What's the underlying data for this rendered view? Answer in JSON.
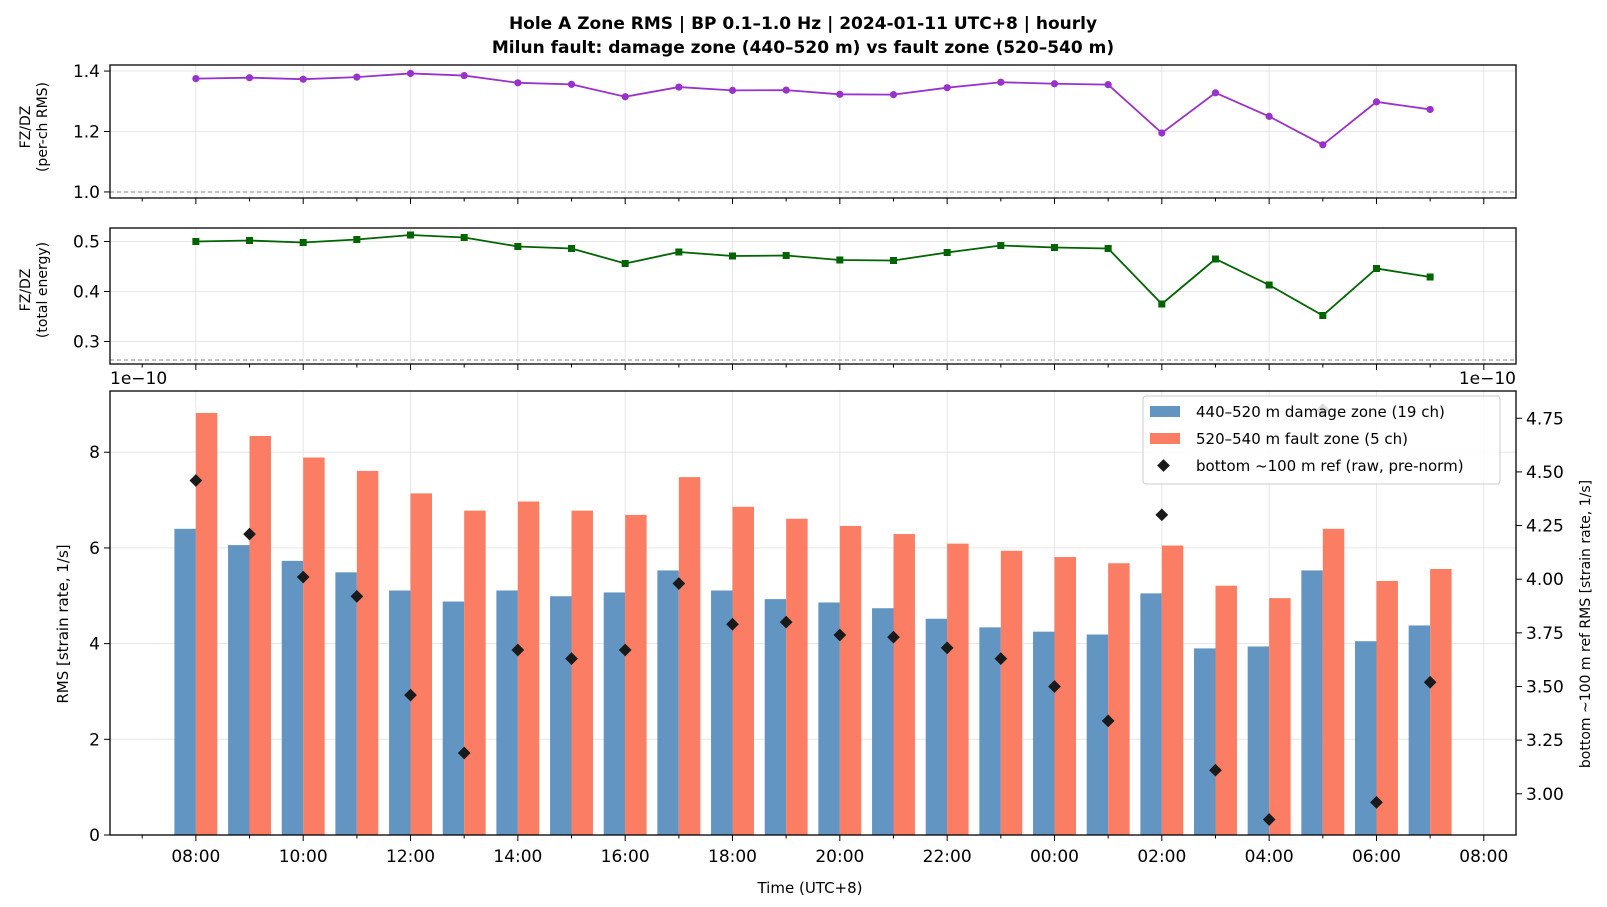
{
  "title": {
    "line1": "Hole A Zone RMS  |  BP 0.1–1.0 Hz  |  2024-01-11 UTC+8  |  hourly",
    "line2": "Milun fault: damage zone (440–520 m) vs fault zone (520–540 m)"
  },
  "colors": {
    "ratio_rms": "#9932cc",
    "ratio_energy": "#006400",
    "damage_zone": "#6395c3",
    "fault_zone": "#fa7d64",
    "reference": "#1a1a1a",
    "grid": "#e6e6e6"
  },
  "chart_data": [
    {
      "type": "line",
      "ylabel_line1": "FZ/DZ",
      "ylabel_line2": "(per-ch RMS)",
      "ylim": [
        0.98,
        1.42
      ],
      "yticks": [
        "1.0",
        "1.2",
        "1.4"
      ],
      "ytick_values": [
        1.0,
        1.2,
        1.4
      ],
      "reference_line": 1.0,
      "x_hours": [
        0,
        1,
        2,
        3,
        4,
        5,
        6,
        7,
        8,
        9,
        10,
        11,
        12,
        13,
        14,
        15,
        16,
        17,
        18,
        19,
        20,
        21,
        22,
        23
      ],
      "values": [
        1.375,
        1.378,
        1.373,
        1.38,
        1.392,
        1.385,
        1.361,
        1.356,
        1.315,
        1.347,
        1.336,
        1.337,
        1.323,
        1.322,
        1.345,
        1.363,
        1.358,
        1.355,
        1.195,
        1.328,
        1.25,
        1.156,
        1.298,
        1.273
      ]
    },
    {
      "type": "line",
      "ylabel_line1": "FZ/DZ",
      "ylabel_line2": "(total energy)",
      "ylim": [
        0.255,
        0.527
      ],
      "yticks": [
        "0.3",
        "0.4",
        "0.5"
      ],
      "ytick_values": [
        0.3,
        0.4,
        0.5
      ],
      "reference_line": 0.263,
      "x_hours": [
        0,
        1,
        2,
        3,
        4,
        5,
        6,
        7,
        8,
        9,
        10,
        11,
        12,
        13,
        14,
        15,
        16,
        17,
        18,
        19,
        20,
        21,
        22,
        23
      ],
      "values": [
        0.5,
        0.502,
        0.498,
        0.504,
        0.513,
        0.508,
        0.49,
        0.486,
        0.456,
        0.479,
        0.471,
        0.472,
        0.463,
        0.462,
        0.478,
        0.492,
        0.488,
        0.486,
        0.375,
        0.465,
        0.413,
        0.352,
        0.446,
        0.429
      ]
    },
    {
      "type": "bar",
      "ylabel": "RMS  [strain rate, 1/s]",
      "ylabel_right": "bottom ~100 m ref RMS  [strain rate, 1/s]",
      "xlabel": "Time (UTC+8)",
      "offset_left": "1e−10",
      "offset_right": "1e−10",
      "ylim": [
        0,
        9.28
      ],
      "yticks": [
        "0",
        "2",
        "4",
        "6",
        "8"
      ],
      "ytick_values": [
        0,
        2,
        4,
        6,
        8
      ],
      "ylim_right": [
        2.808,
        4.877
      ],
      "yticks_right": [
        "3.00",
        "3.25",
        "3.50",
        "3.75",
        "4.00",
        "4.25",
        "4.50",
        "4.75"
      ],
      "ytick_values_right": [
        3.0,
        3.25,
        3.5,
        3.75,
        4.0,
        4.25,
        4.5,
        4.75
      ],
      "xlim_hours": [
        -1.6,
        24.6
      ],
      "xticks": [
        "08:00",
        "10:00",
        "12:00",
        "14:00",
        "16:00",
        "18:00",
        "20:00",
        "22:00",
        "00:00",
        "02:00",
        "04:00",
        "06:00",
        "08:00"
      ],
      "xtick_hours": [
        0,
        2,
        4,
        6,
        8,
        10,
        12,
        14,
        16,
        18,
        20,
        22,
        24
      ],
      "x_hours": [
        0,
        1,
        2,
        3,
        4,
        5,
        6,
        7,
        8,
        9,
        10,
        11,
        12,
        13,
        14,
        15,
        16,
        17,
        18,
        19,
        20,
        21,
        22,
        23
      ],
      "series": [
        {
          "name": "440–520 m  damage zone (19 ch)",
          "values": [
            6.4,
            6.06,
            5.73,
            5.49,
            5.11,
            4.88,
            5.11,
            4.99,
            5.07,
            5.53,
            5.11,
            4.93,
            4.86,
            4.74,
            4.52,
            4.34,
            4.25,
            4.19,
            5.05,
            3.9,
            3.94,
            5.53,
            4.05,
            4.38
          ]
        },
        {
          "name": "520–540 m  fault zone (5 ch)",
          "values": [
            8.82,
            8.34,
            7.89,
            7.61,
            7.14,
            6.78,
            6.97,
            6.78,
            6.69,
            7.48,
            6.86,
            6.61,
            6.46,
            6.29,
            6.09,
            5.94,
            5.81,
            5.68,
            6.05,
            5.21,
            4.95,
            6.4,
            5.31,
            5.56
          ]
        },
        {
          "name": "bottom ~100 m ref (raw, pre-norm)",
          "axis": "right",
          "values": [
            4.46,
            4.21,
            4.01,
            3.92,
            3.46,
            3.19,
            3.67,
            3.63,
            3.67,
            3.98,
            3.79,
            3.8,
            3.74,
            3.73,
            3.68,
            3.63,
            3.5,
            3.34,
            4.3,
            3.11,
            2.88,
            4.79,
            2.96,
            3.52
          ]
        }
      ],
      "legend": "top-right"
    }
  ]
}
